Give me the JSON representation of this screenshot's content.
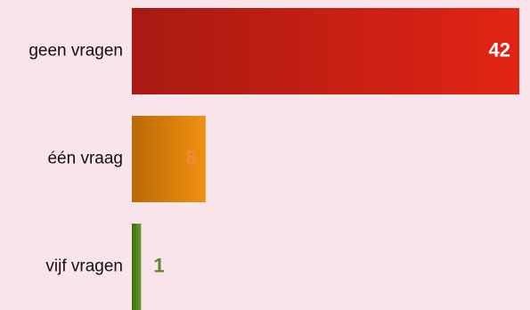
{
  "chart_data": {
    "type": "bar",
    "orientation": "horizontal",
    "categories": [
      "geen vragen",
      "één vraag",
      "vijf vragen"
    ],
    "values": [
      42,
      8,
      1
    ],
    "title": "",
    "xlabel": "",
    "ylabel": "",
    "xlim": [
      0,
      42
    ],
    "grid": false,
    "legend": "none",
    "value_labels": [
      "42",
      "8",
      "1"
    ],
    "colors": [
      {
        "from": "#a81a12",
        "to": "#e22414",
        "label": "#ffffff"
      },
      {
        "from": "#b96a06",
        "to": "#f09010",
        "label": "#f08a3a"
      },
      {
        "from": "#3d6a16",
        "to": "#6b9a2c",
        "label": "#5a8a28"
      }
    ]
  }
}
